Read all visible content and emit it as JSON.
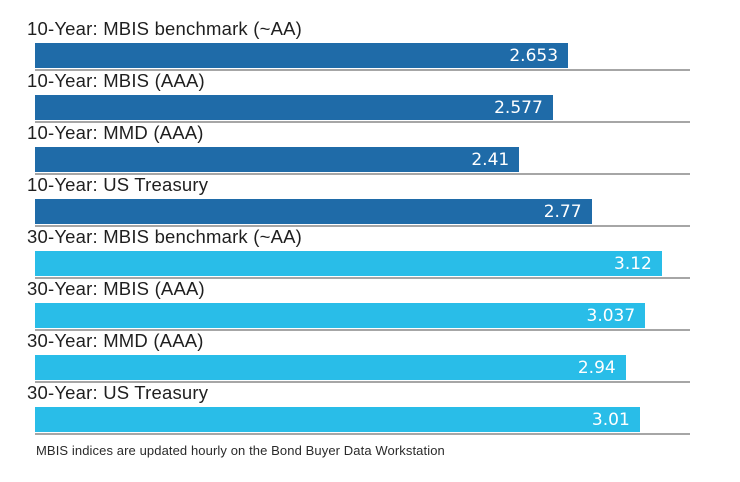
{
  "chart_data": {
    "type": "bar",
    "orientation": "horizontal",
    "title": "",
    "categories": [
      "10-Year: MBIS benchmark (~AA)",
      "10-Year: MBIS (AAA)",
      "10-Year: MMD (AAA)",
      "10-Year: US Treasury",
      "30-Year: MBIS benchmark (~AA)",
      "30-Year: MBIS (AAA)",
      "30-Year: MMD (AAA)",
      "30-Year: US Treasury"
    ],
    "values": [
      2.653,
      2.577,
      2.41,
      2.77,
      3.12,
      3.037,
      2.94,
      3.01
    ],
    "value_labels": [
      "2.653",
      "2.577",
      "2.41",
      "2.77",
      "3.12",
      "3.037",
      "2.94",
      "3.01"
    ],
    "groups": [
      "10-year",
      "10-year",
      "10-year",
      "10-year",
      "30-year",
      "30-year",
      "30-year",
      "30-year"
    ],
    "series": [
      {
        "name": "10-Year",
        "color": "#1F6BA8"
      },
      {
        "name": "30-Year",
        "color": "#29BDE8"
      }
    ],
    "xlim": [
      0,
      3.26
    ],
    "xlabel": "",
    "ylabel": "",
    "legend": "none",
    "grid": "gray underline beneath each bar spanning full axis width",
    "value_label_position": "inside-right, white text"
  },
  "colors": {
    "bar_10_year": "#1F6BA8",
    "bar_30_year": "#29BDE8",
    "underline": "#A6A6A6",
    "value_text": "#FFFFFF",
    "label_text": "#1F1F1F",
    "background": "#FFFFFF"
  },
  "footnote": {
    "text": "MBIS indices are updated hourly on the Bond Buyer Data Workstation"
  }
}
